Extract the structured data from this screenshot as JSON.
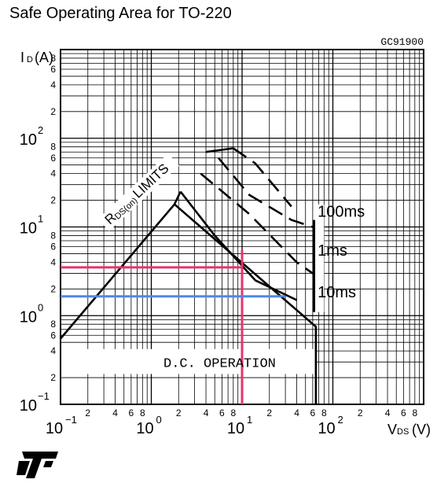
{
  "page": {
    "title": "Safe Operating Area for TO-220"
  },
  "chart_data": {
    "type": "line",
    "title": "Safe Operating Area for TO-220",
    "figure_code": "GC91900",
    "scale": "log-log",
    "xlim": [
      0.1,
      1000
    ],
    "ylim": [
      0.1,
      1000
    ],
    "xlabel": {
      "main": "V",
      "sub": "DS",
      "unit": "(V)"
    },
    "ylabel": {
      "main": "I",
      "sub": "D",
      "unit": "(A)"
    },
    "x_decade_labels": [
      {
        "base": "10",
        "exp": "−1",
        "value": 0.1
      },
      {
        "base": "10",
        "exp": "0",
        "value": 1
      },
      {
        "base": "10",
        "exp": "1",
        "value": 10
      },
      {
        "base": "10",
        "exp": "2",
        "value": 100
      }
    ],
    "y_decade_labels": [
      {
        "base": "10",
        "exp": "−1",
        "value": 0.1
      },
      {
        "base": "10",
        "exp": "0",
        "value": 1
      },
      {
        "base": "10",
        "exp": "1",
        "value": 10
      },
      {
        "base": "10",
        "exp": "2",
        "value": 100
      }
    ],
    "minor_tick_labels": [
      "2",
      "4",
      "6",
      "8"
    ],
    "grid": true,
    "series": [
      {
        "name": "RDS(on) LIMITS",
        "style": "solid",
        "points": [
          [
            0.1,
            0.55
          ],
          [
            1.8,
            18
          ],
          [
            2.1,
            25
          ]
        ]
      },
      {
        "name": "D.C. OPERATION",
        "style": "solid",
        "points": [
          [
            1.8,
            18
          ],
          [
            65,
            0.75
          ],
          [
            65,
            0.1
          ]
        ]
      },
      {
        "name": "10ms",
        "style": "solid",
        "points": [
          [
            2.1,
            25
          ],
          [
            5,
            8
          ],
          [
            14,
            2.5
          ],
          [
            40,
            1.5
          ]
        ]
      },
      {
        "name": "1ms",
        "style": "dashed",
        "points": [
          [
            3.5,
            40
          ],
          [
            12,
            14
          ],
          [
            40,
            4
          ],
          [
            60,
            3
          ]
        ]
      },
      {
        "name": "100ms",
        "style": "dashed",
        "points": [
          [
            5.5,
            60
          ],
          [
            12,
            23
          ],
          [
            35,
            12
          ],
          [
            60,
            10
          ]
        ]
      },
      {
        "name": "",
        "style": "solid",
        "points": [
          [
            4,
            70
          ],
          [
            8,
            77
          ]
        ]
      },
      {
        "name": "",
        "style": "dashed",
        "points": [
          [
            8,
            77
          ],
          [
            14,
            52
          ],
          [
            35,
            17
          ]
        ]
      }
    ],
    "rds_label": {
      "main": "R",
      "sub": "DS(on)",
      "rest": "LIMITS"
    },
    "dc_label": "D.C. OPERATION",
    "pulse_labels": [
      "100ms",
      "1ms",
      "10ms"
    ],
    "annotations": [
      {
        "color": "#e8336b",
        "type": "crosshair",
        "x": 10,
        "y_from": 0.1,
        "y_to": 5.5,
        "h_y": 3.5,
        "h_x_from": 0.1,
        "h_x_to": 10
      },
      {
        "color": "#4d88e8",
        "type": "hline",
        "y": 1.65,
        "x_from": 0.1,
        "x_to": 30
      }
    ]
  },
  "logo": {
    "name": "ST"
  }
}
